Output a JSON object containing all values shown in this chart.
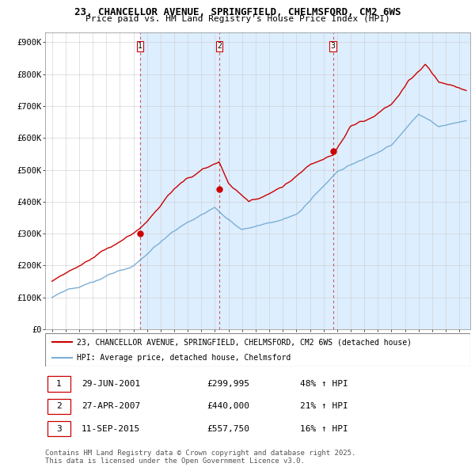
{
  "title_line1": "23, CHANCELLOR AVENUE, SPRINGFIELD, CHELMSFORD, CM2 6WS",
  "title_line2": "Price paid vs. HM Land Registry's House Price Index (HPI)",
  "legend_line1": "23, CHANCELLOR AVENUE, SPRINGFIELD, CHELMSFORD, CM2 6WS (detached house)",
  "legend_line2": "HPI: Average price, detached house, Chelmsford",
  "footer": "Contains HM Land Registry data © Crown copyright and database right 2025.\nThis data is licensed under the Open Government Licence v3.0.",
  "sale_color": "#cc0000",
  "hpi_color": "#7bafd4",
  "shade_color": "#ddeeff",
  "vline_color": "#cc4444",
  "sale_dates": [
    2001.49,
    2007.32,
    2015.7
  ],
  "sale_prices": [
    299995,
    440000,
    557750
  ],
  "sale_labels": [
    "1",
    "2",
    "3"
  ],
  "table_rows": [
    [
      "1",
      "29-JUN-2001",
      "£299,995",
      "48% ↑ HPI"
    ],
    [
      "2",
      "27-APR-2007",
      "£440,000",
      "21% ↑ HPI"
    ],
    [
      "3",
      "11-SEP-2015",
      "£557,750",
      "16% ↑ HPI"
    ]
  ],
  "ylim": [
    0,
    930000
  ],
  "yticks": [
    0,
    100000,
    200000,
    300000,
    400000,
    500000,
    600000,
    700000,
    800000,
    900000
  ],
  "ytick_labels": [
    "£0",
    "£100K",
    "£200K",
    "£300K",
    "£400K",
    "£500K",
    "£600K",
    "£700K",
    "£800K",
    "£900K"
  ],
  "xlim": [
    1994.5,
    2025.8
  ],
  "xticks": [
    1995,
    1996,
    1997,
    1998,
    1999,
    2000,
    2001,
    2002,
    2003,
    2004,
    2005,
    2006,
    2007,
    2008,
    2009,
    2010,
    2011,
    2012,
    2013,
    2014,
    2015,
    2016,
    2017,
    2018,
    2019,
    2020,
    2021,
    2022,
    2023,
    2024,
    2025
  ]
}
